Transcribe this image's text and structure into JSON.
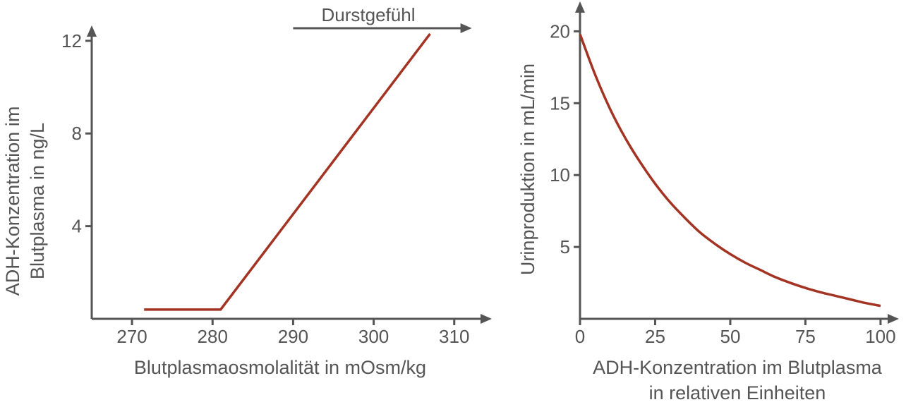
{
  "chart_data": [
    {
      "type": "line",
      "xlabel": "Blutplasmaosmolalität in mOsm/kg",
      "ylabel_lines": [
        "ADH-Konzentration im",
        "Blutplasma in ng/L"
      ],
      "x_ticks": [
        "270",
        "280",
        "290",
        "300",
        "310"
      ],
      "y_ticks": [
        "4",
        "8",
        "12"
      ],
      "xlim": [
        265,
        313
      ],
      "ylim": [
        0,
        13
      ],
      "annotation": "Durstgefühl",
      "annotation_arrow_x": [
        290,
        312
      ],
      "series": [
        {
          "x": [
            271.5,
            281,
            307
          ],
          "y": [
            0.4,
            0.4,
            12.3
          ]
        }
      ],
      "line_color": "#a33322",
      "axis_color": "#555555"
    },
    {
      "type": "line",
      "xlabel_lines": [
        "ADH-Konzentration im Blutplasma",
        "in relativen Einheiten"
      ],
      "ylabel": "Urinproduktion in mL/min",
      "x_ticks": [
        "0",
        "25",
        "50",
        "75",
        "100"
      ],
      "y_ticks": [
        "5",
        "10",
        "15",
        "20"
      ],
      "xlim": [
        0,
        108
      ],
      "ylim": [
        0,
        21
      ],
      "series": [
        {
          "x": [
            0,
            5,
            10,
            15,
            20,
            25,
            30,
            35,
            40,
            45,
            50,
            55,
            60,
            65,
            70,
            75,
            80,
            85,
            90,
            95,
            100
          ],
          "y": [
            19.8,
            17.0,
            14.6,
            12.6,
            10.9,
            9.4,
            8.1,
            7.0,
            6.0,
            5.2,
            4.5,
            3.9,
            3.4,
            2.9,
            2.5,
            2.15,
            1.85,
            1.6,
            1.35,
            1.1,
            0.9
          ]
        }
      ],
      "line_color": "#a33322",
      "axis_color": "#555555"
    }
  ]
}
